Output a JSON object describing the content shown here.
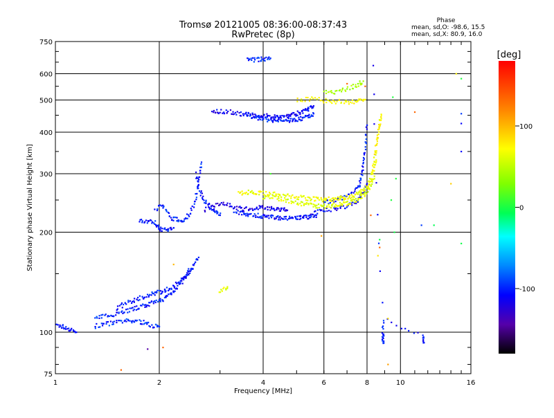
{
  "chart_data": {
    "type": "scatter",
    "title": "Tromsø 20121005 08:36:00-08:37:43",
    "subtitle": "RwPretec (8p)",
    "xlabel": "Frequency [MHz]",
    "ylabel": "Stationary phase Virtual Height [km]",
    "x_scale": "log",
    "y_scale": "log",
    "xlim": [
      1,
      16
    ],
    "ylim": [
      75,
      750
    ],
    "xticks": [
      1,
      2,
      4,
      6,
      8,
      10,
      16
    ],
    "yticks": [
      75,
      100,
      200,
      300,
      400,
      500,
      600,
      750
    ],
    "grid": true,
    "phase_stats": {
      "heading": "Phase",
      "line1": "mean, sd,O: -98.6, 15.5",
      "line2": "mean, sd,X: 80.9, 16.0"
    },
    "colorbar": {
      "label": "[deg]",
      "ticks": [
        100,
        0,
        -100
      ],
      "range": [
        -180,
        180
      ]
    },
    "series": [
      {
        "description_mode": "O",
        "traces": [
          {
            "f": [
              1.0,
              1.05,
              1.1,
              1.15
            ],
            "h": [
              105,
              104,
              102,
              100
            ],
            "phase": -115
          },
          {
            "f": [
              1.3,
              1.4,
              1.5,
              1.6,
              1.7,
              1.8,
              1.9,
              2.0
            ],
            "h": [
              104,
              106,
              107,
              108,
              108,
              107,
              105,
              104
            ],
            "phase": -105
          },
          {
            "f": [
              1.3,
              1.4,
              1.5,
              1.6,
              1.7,
              1.8,
              1.9,
              2.0,
              2.1,
              2.2,
              2.3,
              2.4,
              2.5,
              2.6
            ],
            "h": [
              110,
              112,
              114,
              116,
              118,
              120,
              122,
              124,
              128,
              133,
              140,
              150,
              158,
              168
            ],
            "phase": -108
          },
          {
            "f": [
              1.5,
              1.6,
              1.7,
              1.8,
              1.9,
              2.0,
              2.1,
              2.2,
              2.3,
              2.4,
              2.5
            ],
            "h": [
              118,
              122,
              125,
              128,
              130,
              132,
              134,
              138,
              142,
              148,
              155
            ],
            "phase": -110
          },
          {
            "f": [
              1.75,
              1.85,
              1.95,
              2.0,
              2.1,
              2.2
            ],
            "h": [
              218,
              216,
              213,
              205,
              203,
              206
            ],
            "phase": -110
          },
          {
            "f": [
              1.95,
              2.05,
              2.15,
              2.25,
              2.35,
              2.45,
              2.55,
              2.6,
              2.65
            ],
            "h": [
              235,
              240,
              222,
              218,
              216,
              228,
              250,
              290,
              325
            ],
            "phase": -108
          },
          {
            "f": [
              2.55,
              2.6,
              2.7,
              2.8,
              2.9,
              3.0
            ],
            "h": [
              300,
              270,
              250,
              240,
              232,
              225
            ],
            "phase": -112
          },
          {
            "f": [
              2.7,
              2.9,
              3.1,
              3.3,
              3.5,
              3.7,
              3.9,
              4.1,
              4.3,
              4.5,
              4.7
            ],
            "h": [
              232,
              242,
              245,
              238,
              234,
              236,
              238,
              236,
              235,
              234,
              233
            ],
            "phase": -125
          },
          {
            "f": [
              3.3,
              3.5,
              3.7,
              3.9,
              4.1,
              4.3,
              4.5,
              4.7,
              4.9,
              5.1,
              5.3,
              5.5,
              5.7
            ],
            "h": [
              230,
              228,
              226,
              224,
              223,
              222,
              221,
              220,
              220,
              221,
              222,
              223,
              225
            ],
            "phase": -112
          },
          {
            "f": [
              2.85,
              3.0,
              3.2,
              3.4,
              3.6,
              3.8,
              4.0,
              4.2,
              4.4,
              4.6,
              4.8,
              5.0,
              5.2,
              5.4,
              5.6
            ],
            "h": [
              465,
              462,
              460,
              456,
              452,
              450,
              448,
              447,
              447,
              448,
              450,
              455,
              460,
              470,
              480
            ],
            "phase": -120
          },
          {
            "f": [
              3.6,
              3.8,
              4.0,
              4.2,
              4.4,
              4.6,
              4.8,
              5.0,
              5.2,
              5.4,
              5.6
            ],
            "h": [
              445,
              442,
              438,
              436,
              434,
              434,
              435,
              437,
              440,
              447,
              455
            ],
            "phase": -108
          },
          {
            "f": [
              3.6,
              3.8,
              4.0,
              4.2
            ],
            "h": [
              660,
              662,
              665,
              668
            ],
            "phase": -105
          },
          {
            "f": [
              6.0,
              6.5,
              7.0,
              7.5,
              7.7,
              7.8,
              7.9,
              8.0
            ],
            "h": [
              245,
              250,
              258,
              270,
              290,
              320,
              360,
              420
            ],
            "phase": -110
          },
          {
            "f": [
              5.5,
              6.0,
              6.5,
              7.0,
              7.5,
              7.8,
              8.0
            ],
            "h": [
              228,
              232,
              236,
              240,
              248,
              265,
              280
            ],
            "phase": -118
          },
          {
            "f": [
              8.3,
              8.9,
              8.9,
              8.9,
              11.6,
              11.7
            ],
            "h": [
              640,
              100,
              92,
              110,
              97,
              93
            ],
            "phase": -110
          }
        ]
      },
      {
        "description_mode": "X",
        "traces": [
          {
            "f": [
              3.4,
              3.6,
              3.8,
              4.0,
              4.3,
              4.6,
              4.9,
              5.2,
              5.5,
              5.8,
              6.1,
              6.4,
              6.7,
              7.0,
              7.3,
              7.6,
              7.9,
              8.1,
              8.3,
              8.5
            ],
            "h": [
              262,
              264,
              264,
              262,
              260,
              258,
              256,
              254,
              252,
              251,
              251,
              252,
              253,
              255,
              258,
              262,
              270,
              280,
              300,
              330
            ],
            "phase": 85
          },
          {
            "f": [
              4.0,
              4.3,
              4.6,
              4.9,
              5.2,
              5.5,
              5.8,
              6.1,
              6.4,
              6.7,
              7.0,
              7.3,
              7.6,
              7.9,
              8.2,
              8.4
            ],
            "h": [
              256,
              254,
              250,
              246,
              243,
              241,
              240,
              240,
              241,
              242,
              244,
              248,
              254,
              262,
              275,
              295
            ],
            "phase": 78
          },
          {
            "f": [
              8.3,
              8.4,
              8.5,
              8.6,
              8.7,
              8.8
            ],
            "h": [
              300,
              330,
              360,
              390,
              420,
              450
            ],
            "phase": 90
          },
          {
            "f": [
              5.0,
              5.5,
              6.0,
              6.5,
              7.0,
              7.5,
              7.9
            ],
            "h": [
              500,
              505,
              498,
              495,
              492,
              497,
              502
            ],
            "phase": 90
          },
          {
            "f": [
              3.0,
              3.15
            ],
            "h": [
              133,
              137
            ],
            "phase": 80
          },
          {
            "f": [
              6.0,
              6.5,
              7.0,
              7.5,
              7.8
            ],
            "h": [
              525,
              530,
              540,
              555,
              570
            ],
            "phase": 55
          }
        ]
      }
    ],
    "scattered": [
      {
        "f": 15.0,
        "h": 455,
        "phase": -100
      },
      {
        "f": 15.0,
        "h": 425,
        "phase": -115
      },
      {
        "f": 15.0,
        "h": 350,
        "phase": -115
      },
      {
        "f": 15.0,
        "h": 185,
        "phase": 5
      },
      {
        "f": 15.0,
        "h": 580,
        "phase": 10
      },
      {
        "f": 14.5,
        "h": 600,
        "phase": 95
      },
      {
        "f": 14.0,
        "h": 280,
        "phase": 110
      },
      {
        "f": 11.5,
        "h": 210,
        "phase": -100
      },
      {
        "f": 11.0,
        "h": 460,
        "phase": 150
      },
      {
        "f": 12.5,
        "h": 210,
        "phase": 0
      },
      {
        "f": 9.5,
        "h": 510,
        "phase": 10
      },
      {
        "f": 9.7,
        "h": 290,
        "phase": 10
      },
      {
        "f": 9.6,
        "h": 200,
        "phase": 5
      },
      {
        "f": 9.4,
        "h": 250,
        "phase": 10
      },
      {
        "f": 9.2,
        "h": 110,
        "phase": 100
      },
      {
        "f": 9.2,
        "h": 80,
        "phase": 130
      },
      {
        "f": 8.7,
        "h": 190,
        "phase": 5
      },
      {
        "f": 8.6,
        "h": 170,
        "phase": 100
      },
      {
        "f": 8.7,
        "h": 180,
        "phase": 150
      },
      {
        "f": 7.9,
        "h": 550,
        "phase": 150
      },
      {
        "f": 7.0,
        "h": 560,
        "phase": 150
      },
      {
        "f": 8.2,
        "h": 225,
        "phase": 150
      },
      {
        "f": 5.9,
        "h": 195,
        "phase": 130
      },
      {
        "f": 4.2,
        "h": 300,
        "phase": 20
      },
      {
        "f": 1.55,
        "h": 77,
        "phase": 150
      },
      {
        "f": 2.05,
        "h": 90,
        "phase": 150
      },
      {
        "f": 1.85,
        "h": 89,
        "phase": -150
      },
      {
        "f": 2.2,
        "h": 160,
        "phase": 120
      }
    ]
  }
}
